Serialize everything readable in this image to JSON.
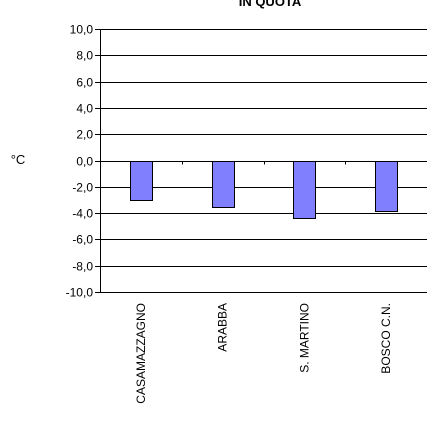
{
  "chart_data": {
    "type": "bar",
    "title": "IN QUOTA",
    "xlabel": "",
    "ylabel": "°C",
    "categories": [
      "CASAMAZZAGNO",
      "ARABBA",
      "S. MARTINO",
      "BOSCO C.N."
    ],
    "values": [
      -3.0,
      -3.5,
      -4.3,
      -3.8
    ],
    "ylim": [
      -10.0,
      10.0
    ],
    "yticks": [
      10.0,
      8.0,
      6.0,
      4.0,
      2.0,
      0.0,
      -2.0,
      -4.0,
      -6.0,
      -8.0,
      -10.0
    ],
    "ytick_labels": [
      "10,0",
      "8,0",
      "6,0",
      "4,0",
      "2,0",
      "0,0",
      "-2,0",
      "-4,0",
      "-6,0",
      "-8,0",
      "-10,0"
    ],
    "grid": true,
    "legend": "none",
    "colors": {
      "bar_fill": "#8080ff",
      "bar_stroke": "#000000",
      "grid": "#000000",
      "axis": "#000000"
    }
  }
}
